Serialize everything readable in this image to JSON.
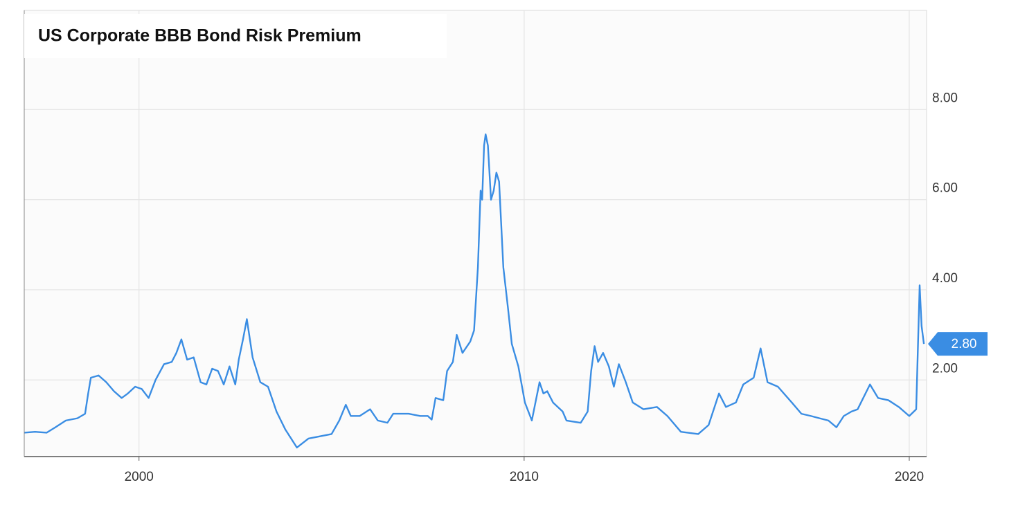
{
  "chart_data": {
    "type": "line",
    "title": "US Corporate BBB Bond Risk Premium",
    "color": "#3a8de3",
    "grid": true,
    "xlim": [
      1997.02,
      2020.45
    ],
    "xticks": [
      2000,
      2010,
      2020
    ],
    "ylim": [
      0.3,
      10.2
    ],
    "yticks": [
      {
        "value": 2,
        "label": "2.00"
      },
      {
        "value": 4,
        "label": "4.00"
      },
      {
        "value": 6,
        "label": "6.00"
      },
      {
        "value": 8,
        "label": "8.00"
      }
    ],
    "last_value": {
      "value": 2.8,
      "label": "2.80"
    },
    "x": [
      1997.02,
      1997.3,
      1997.6,
      1997.83,
      1998.1,
      1998.4,
      1998.6,
      1998.68,
      1998.75,
      1998.95,
      1999.15,
      1999.35,
      1999.55,
      1999.71,
      1999.9,
      2000.07,
      2000.25,
      2000.43,
      2000.65,
      2000.85,
      2000.97,
      2001.1,
      2001.25,
      2001.42,
      2001.6,
      2001.75,
      2001.9,
      2002.05,
      2002.2,
      2002.35,
      2002.5,
      2002.59,
      2002.7,
      2002.8,
      2002.95,
      2003.15,
      2003.35,
      2003.57,
      2003.8,
      2004.1,
      2004.4,
      2004.7,
      2005.0,
      2005.2,
      2005.37,
      2005.5,
      2005.73,
      2006.0,
      2006.2,
      2006.45,
      2006.6,
      2007.0,
      2007.3,
      2007.5,
      2007.6,
      2007.7,
      2007.9,
      2008.0,
      2008.15,
      2008.25,
      2008.4,
      2008.6,
      2008.7,
      2008.8,
      2008.87,
      2008.91,
      2008.96,
      2009.0,
      2009.06,
      2009.14,
      2009.21,
      2009.28,
      2009.35,
      2009.46,
      2009.58,
      2009.68,
      2009.85,
      2010.02,
      2010.2,
      2010.4,
      2010.5,
      2010.6,
      2010.75,
      2011.0,
      2011.1,
      2011.47,
      2011.65,
      2011.74,
      2011.83,
      2011.92,
      2012.05,
      2012.2,
      2012.33,
      2012.46,
      2012.64,
      2012.82,
      2013.1,
      2013.45,
      2013.72,
      2014.07,
      2014.52,
      2014.79,
      2015.06,
      2015.24,
      2015.5,
      2015.69,
      2015.96,
      2016.14,
      2016.32,
      2016.59,
      2016.95,
      2017.2,
      2017.45,
      2017.67,
      2017.9,
      2018.11,
      2018.3,
      2018.5,
      2018.66,
      2018.98,
      2019.19,
      2019.46,
      2019.73,
      2020.0,
      2020.18,
      2020.27,
      2020.32,
      2020.38
    ],
    "values": [
      0.83,
      0.85,
      0.83,
      0.95,
      1.1,
      1.15,
      1.25,
      1.7,
      2.05,
      2.1,
      1.95,
      1.75,
      1.6,
      1.7,
      1.85,
      1.8,
      1.6,
      2.0,
      2.35,
      2.4,
      2.6,
      2.9,
      2.45,
      2.5,
      1.95,
      1.9,
      2.25,
      2.2,
      1.9,
      2.3,
      1.9,
      2.45,
      2.9,
      3.35,
      2.5,
      1.95,
      1.85,
      1.3,
      0.9,
      0.5,
      0.7,
      0.75,
      0.8,
      1.1,
      1.45,
      1.2,
      1.2,
      1.35,
      1.1,
      1.05,
      1.25,
      1.25,
      1.2,
      1.2,
      1.12,
      1.6,
      1.55,
      2.2,
      2.4,
      3.0,
      2.6,
      2.85,
      3.1,
      4.5,
      6.2,
      6.0,
      7.2,
      7.45,
      7.2,
      6.0,
      6.2,
      6.6,
      6.4,
      4.5,
      3.6,
      2.8,
      2.3,
      1.5,
      1.1,
      1.95,
      1.7,
      1.75,
      1.5,
      1.3,
      1.1,
      1.05,
      1.3,
      2.2,
      2.75,
      2.4,
      2.6,
      2.3,
      1.85,
      2.35,
      1.95,
      1.5,
      1.35,
      1.4,
      1.2,
      0.85,
      0.8,
      1.0,
      1.7,
      1.4,
      1.5,
      1.9,
      2.05,
      2.7,
      1.95,
      1.85,
      1.5,
      1.25,
      1.2,
      1.15,
      1.1,
      0.95,
      1.2,
      1.3,
      1.35,
      1.9,
      1.6,
      1.55,
      1.4,
      1.2,
      1.35,
      4.1,
      3.2,
      2.8
    ]
  }
}
